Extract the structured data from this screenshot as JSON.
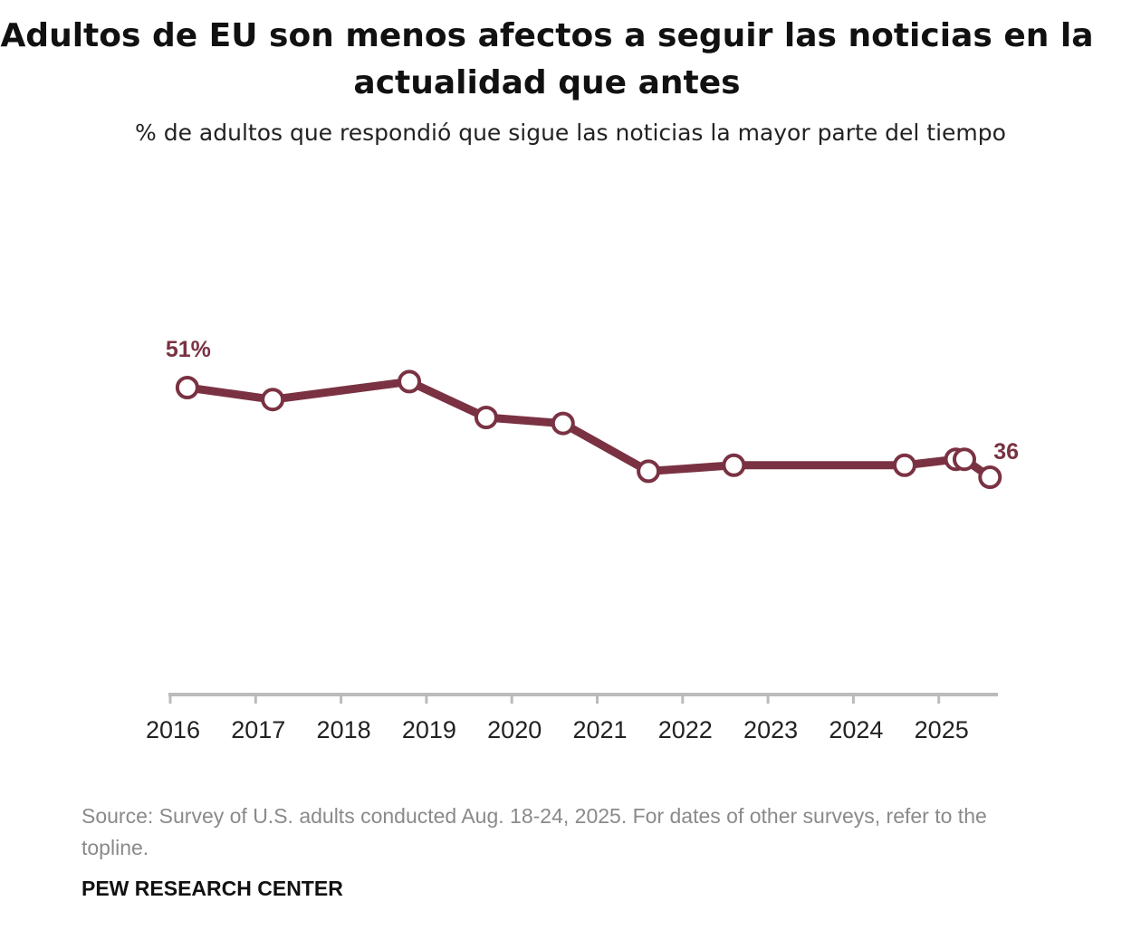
{
  "chart_data": {
    "type": "line",
    "title": "Adultos de EU son menos afectos a seguir las noticias en la actualidad que antes",
    "subtitle": "% de adultos que respondió que sigue las noticias la mayor parte del tiempo",
    "xlabel": "",
    "ylabel": "",
    "x_ticks": [
      "2016",
      "2017",
      "2018",
      "2019",
      "2020",
      "2021",
      "2022",
      "2023",
      "2024",
      "2025"
    ],
    "x": [
      2016.2,
      2017.2,
      2018.8,
      2019.7,
      2020.6,
      2021.6,
      2022.6,
      2024.6,
      2025.2,
      2025.3,
      2025.6
    ],
    "series": [
      {
        "values": [
          51,
          49,
          52,
          46,
          45,
          37,
          38,
          38,
          39,
          39,
          36
        ]
      }
    ],
    "data_labels": {
      "first": "51%",
      "last": "36"
    },
    "grid": false,
    "color": "#7a3243"
  },
  "footer": {
    "source": "Source: Survey of U.S. adults conducted Aug. 18-24, 2025. For dates of other surveys, refer to the topline.",
    "logo": "PEW RESEARCH CENTER"
  }
}
